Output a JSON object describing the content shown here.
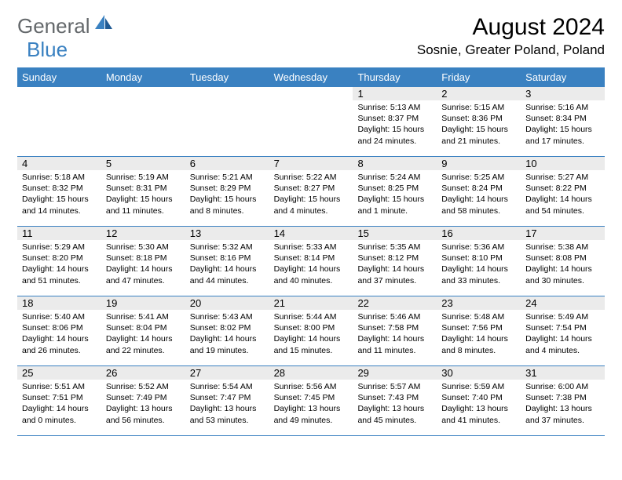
{
  "logo": {
    "text1": "General",
    "text2": "Blue"
  },
  "title": "August 2024",
  "location": "Sosnie, Greater Poland, Poland",
  "dayHeaders": [
    "Sunday",
    "Monday",
    "Tuesday",
    "Wednesday",
    "Thursday",
    "Friday",
    "Saturday"
  ],
  "colors": {
    "headerBg": "#3a81c1",
    "dayNumBg": "#ebebeb",
    "logoGray": "#64686b",
    "logoBlue": "#3a81c1"
  },
  "weeks": [
    [
      null,
      null,
      null,
      null,
      {
        "n": "1",
        "sr": "5:13 AM",
        "ss": "8:37 PM",
        "dl": "15 hours and 24 minutes."
      },
      {
        "n": "2",
        "sr": "5:15 AM",
        "ss": "8:36 PM",
        "dl": "15 hours and 21 minutes."
      },
      {
        "n": "3",
        "sr": "5:16 AM",
        "ss": "8:34 PM",
        "dl": "15 hours and 17 minutes."
      }
    ],
    [
      {
        "n": "4",
        "sr": "5:18 AM",
        "ss": "8:32 PM",
        "dl": "15 hours and 14 minutes."
      },
      {
        "n": "5",
        "sr": "5:19 AM",
        "ss": "8:31 PM",
        "dl": "15 hours and 11 minutes."
      },
      {
        "n": "6",
        "sr": "5:21 AM",
        "ss": "8:29 PM",
        "dl": "15 hours and 8 minutes."
      },
      {
        "n": "7",
        "sr": "5:22 AM",
        "ss": "8:27 PM",
        "dl": "15 hours and 4 minutes."
      },
      {
        "n": "8",
        "sr": "5:24 AM",
        "ss": "8:25 PM",
        "dl": "15 hours and 1 minute."
      },
      {
        "n": "9",
        "sr": "5:25 AM",
        "ss": "8:24 PM",
        "dl": "14 hours and 58 minutes."
      },
      {
        "n": "10",
        "sr": "5:27 AM",
        "ss": "8:22 PM",
        "dl": "14 hours and 54 minutes."
      }
    ],
    [
      {
        "n": "11",
        "sr": "5:29 AM",
        "ss": "8:20 PM",
        "dl": "14 hours and 51 minutes."
      },
      {
        "n": "12",
        "sr": "5:30 AM",
        "ss": "8:18 PM",
        "dl": "14 hours and 47 minutes."
      },
      {
        "n": "13",
        "sr": "5:32 AM",
        "ss": "8:16 PM",
        "dl": "14 hours and 44 minutes."
      },
      {
        "n": "14",
        "sr": "5:33 AM",
        "ss": "8:14 PM",
        "dl": "14 hours and 40 minutes."
      },
      {
        "n": "15",
        "sr": "5:35 AM",
        "ss": "8:12 PM",
        "dl": "14 hours and 37 minutes."
      },
      {
        "n": "16",
        "sr": "5:36 AM",
        "ss": "8:10 PM",
        "dl": "14 hours and 33 minutes."
      },
      {
        "n": "17",
        "sr": "5:38 AM",
        "ss": "8:08 PM",
        "dl": "14 hours and 30 minutes."
      }
    ],
    [
      {
        "n": "18",
        "sr": "5:40 AM",
        "ss": "8:06 PM",
        "dl": "14 hours and 26 minutes."
      },
      {
        "n": "19",
        "sr": "5:41 AM",
        "ss": "8:04 PM",
        "dl": "14 hours and 22 minutes."
      },
      {
        "n": "20",
        "sr": "5:43 AM",
        "ss": "8:02 PM",
        "dl": "14 hours and 19 minutes."
      },
      {
        "n": "21",
        "sr": "5:44 AM",
        "ss": "8:00 PM",
        "dl": "14 hours and 15 minutes."
      },
      {
        "n": "22",
        "sr": "5:46 AM",
        "ss": "7:58 PM",
        "dl": "14 hours and 11 minutes."
      },
      {
        "n": "23",
        "sr": "5:48 AM",
        "ss": "7:56 PM",
        "dl": "14 hours and 8 minutes."
      },
      {
        "n": "24",
        "sr": "5:49 AM",
        "ss": "7:54 PM",
        "dl": "14 hours and 4 minutes."
      }
    ],
    [
      {
        "n": "25",
        "sr": "5:51 AM",
        "ss": "7:51 PM",
        "dl": "14 hours and 0 minutes."
      },
      {
        "n": "26",
        "sr": "5:52 AM",
        "ss": "7:49 PM",
        "dl": "13 hours and 56 minutes."
      },
      {
        "n": "27",
        "sr": "5:54 AM",
        "ss": "7:47 PM",
        "dl": "13 hours and 53 minutes."
      },
      {
        "n": "28",
        "sr": "5:56 AM",
        "ss": "7:45 PM",
        "dl": "13 hours and 49 minutes."
      },
      {
        "n": "29",
        "sr": "5:57 AM",
        "ss": "7:43 PM",
        "dl": "13 hours and 45 minutes."
      },
      {
        "n": "30",
        "sr": "5:59 AM",
        "ss": "7:40 PM",
        "dl": "13 hours and 41 minutes."
      },
      {
        "n": "31",
        "sr": "6:00 AM",
        "ss": "7:38 PM",
        "dl": "13 hours and 37 minutes."
      }
    ]
  ],
  "labels": {
    "sunrise": "Sunrise:",
    "sunset": "Sunset:",
    "daylight": "Daylight:"
  }
}
